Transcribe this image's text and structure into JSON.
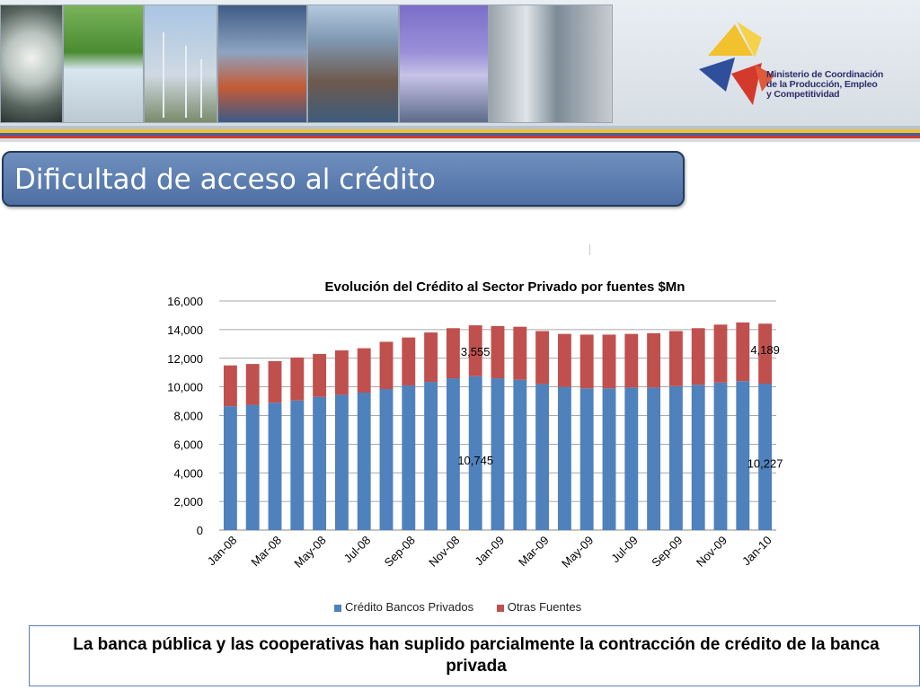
{
  "header": {
    "organization": "Ministerio de Coordinación de la Producción, Empleo y Competitividad",
    "org_line1": "Ministerio de Coordinación",
    "org_line2": "de la Producción, Empleo",
    "org_line3": "y Competitividad"
  },
  "slide": {
    "title": "Dificultad de acceso al crédito",
    "note": "La banca pública y las cooperativas han suplido parcialmente la contracción de crédito de la banca privada"
  },
  "colors": {
    "series_banks": "#4f81bd",
    "series_other": "#c0504d",
    "title_bar": "#5b7caf",
    "stripe_yellow": "#f2c12e",
    "stripe_blue": "#3f62a8",
    "stripe_red": "#d33a2c"
  },
  "chart_data": {
    "type": "bar",
    "stacked": true,
    "title": "Evolución del Crédito al Sector Privado por fuentes $Mn",
    "categories": [
      "Jan-08",
      "Feb-08",
      "Mar-08",
      "Apr-08",
      "May-08",
      "Jun-08",
      "Jul-08",
      "Aug-08",
      "Sep-08",
      "Oct-08",
      "Nov-08",
      "Dec-08",
      "Jan-09",
      "Feb-09",
      "Mar-09",
      "Apr-09",
      "May-09",
      "Jun-09",
      "Jul-09",
      "Aug-09",
      "Sep-09",
      "Oct-09",
      "Nov-09",
      "Dec-09",
      "Jan-10"
    ],
    "x_tick_labels": [
      "Jan-08",
      "Mar-08",
      "May-08",
      "Jul-08",
      "Sep-08",
      "Nov-08",
      "Jan-09",
      "Mar-09",
      "May-09",
      "Jul-09",
      "Sep-09",
      "Nov-09",
      "Jan-10"
    ],
    "series": [
      {
        "name": "Crédito Bancos Privados",
        "color": "#4f81bd",
        "values": [
          8650,
          8750,
          8900,
          9050,
          9300,
          9450,
          9600,
          9850,
          10100,
          10350,
          10600,
          10745,
          10600,
          10500,
          10200,
          10000,
          9900,
          9900,
          9950,
          9950,
          10050,
          10150,
          10300,
          10400,
          10227
        ]
      },
      {
        "name": "Otras Fuentes",
        "color": "#c0504d",
        "values": [
          2850,
          2850,
          2900,
          3000,
          3000,
          3100,
          3100,
          3300,
          3350,
          3450,
          3500,
          3555,
          3650,
          3700,
          3700,
          3700,
          3750,
          3750,
          3750,
          3800,
          3850,
          3950,
          4050,
          4100,
          4189
        ]
      }
    ],
    "data_labels": [
      {
        "category": "Dec-08",
        "series": "Otras Fuentes",
        "text": "3,555"
      },
      {
        "category": "Dec-08",
        "series": "Crédito Bancos Privados",
        "text": "10,745"
      },
      {
        "category": "Jan-10",
        "series": "Otras Fuentes",
        "text": "4,189"
      },
      {
        "category": "Jan-10",
        "series": "Crédito Bancos Privados",
        "text": "10,227"
      }
    ],
    "y_tick_labels": [
      "0",
      "2,000",
      "4,000",
      "6,000",
      "8,000",
      "10,000",
      "12,000",
      "14,000",
      "16,000"
    ],
    "ylim": [
      0,
      16000
    ],
    "xlabel": "",
    "ylabel": "",
    "grid": true,
    "legend": "bottom"
  }
}
